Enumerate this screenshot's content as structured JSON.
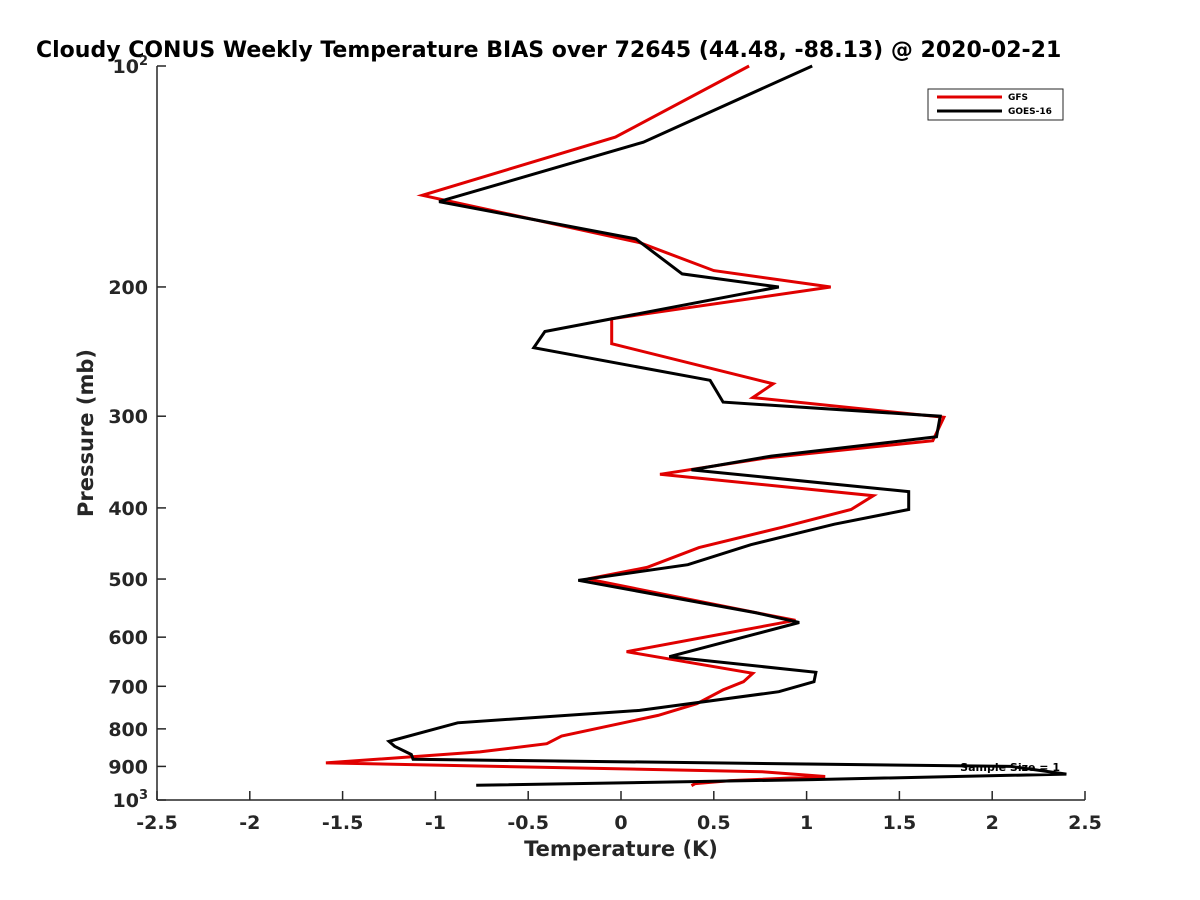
{
  "chart_data": {
    "type": "line",
    "title": "Cloudy CONUS Weekly Temperature BIAS over 72645 (44.48, -88.13) @ 2020-02-21",
    "xlabel": "Temperature (K)",
    "ylabel": "Pressure (mb)",
    "xlim": [
      -2.5,
      2.5
    ],
    "ylim": [
      100,
      1000
    ],
    "y_scale": "log",
    "y_reversed": true,
    "grid": false,
    "legend_position": "top-right",
    "x_ticks": [
      {
        "value": -2.5,
        "label": "-2.5"
      },
      {
        "value": -2,
        "label": "-2"
      },
      {
        "value": -1.5,
        "label": "-1.5"
      },
      {
        "value": -1,
        "label": "-1"
      },
      {
        "value": -0.5,
        "label": "-0.5"
      },
      {
        "value": 0,
        "label": "0"
      },
      {
        "value": 0.5,
        "label": "0.5"
      },
      {
        "value": 1,
        "label": "1"
      },
      {
        "value": 1.5,
        "label": "1.5"
      },
      {
        "value": 2,
        "label": "2"
      },
      {
        "value": 2.5,
        "label": "2.5"
      }
    ],
    "y_ticks": [
      {
        "value": 100,
        "base": "10",
        "exp": "2"
      },
      {
        "value": 200,
        "label": "200"
      },
      {
        "value": 300,
        "label": "300"
      },
      {
        "value": 400,
        "label": "400"
      },
      {
        "value": 500,
        "label": "500"
      },
      {
        "value": 600,
        "label": "600"
      },
      {
        "value": 700,
        "label": "700"
      },
      {
        "value": 800,
        "label": "800"
      },
      {
        "value": 900,
        "label": "900"
      },
      {
        "value": 1000,
        "base": "10",
        "exp": "3"
      }
    ],
    "annotation": "Sample Size = 1",
    "series": [
      {
        "name": "GFS",
        "color": "#e00000",
        "points": [
          [
            0.69,
            100
          ],
          [
            -0.03,
            125
          ],
          [
            -1.07,
            150
          ],
          [
            0.1,
            174
          ],
          [
            0.5,
            190
          ],
          [
            1.13,
            200
          ],
          [
            -0.05,
            221
          ],
          [
            -0.05,
            239
          ],
          [
            0.82,
            271
          ],
          [
            0.71,
            283
          ],
          [
            1.74,
            301
          ],
          [
            1.68,
            324
          ],
          [
            0.78,
            342
          ],
          [
            0.21,
            360
          ],
          [
            1.36,
            385
          ],
          [
            1.24,
            402
          ],
          [
            0.87,
            425
          ],
          [
            0.42,
            453
          ],
          [
            0.14,
            482
          ],
          [
            -0.18,
            500
          ],
          [
            0.78,
            559
          ],
          [
            0.94,
            569
          ],
          [
            0.03,
            628
          ],
          [
            0.71,
            672
          ],
          [
            0.66,
            690
          ],
          [
            0.55,
            708
          ],
          [
            0.41,
            739
          ],
          [
            0.2,
            767
          ],
          [
            -0.32,
            818
          ],
          [
            -0.4,
            838
          ],
          [
            -0.76,
            860
          ],
          [
            -1.59,
            890
          ],
          [
            0.76,
            915
          ],
          [
            1.1,
            929
          ],
          [
            0.59,
            941
          ],
          [
            0.4,
            950
          ],
          [
            0.38,
            956
          ]
        ]
      },
      {
        "name": "GOES-16",
        "color": "#000000",
        "points": [
          [
            1.03,
            100
          ],
          [
            0.12,
            127
          ],
          [
            -0.98,
            153
          ],
          [
            0.08,
            172
          ],
          [
            0.33,
            192
          ],
          [
            0.85,
            200
          ],
          [
            -0.41,
            230
          ],
          [
            -0.47,
            242
          ],
          [
            0.48,
            268
          ],
          [
            0.55,
            287
          ],
          [
            1.72,
            300
          ],
          [
            1.7,
            320
          ],
          [
            0.81,
            340
          ],
          [
            0.38,
            355
          ],
          [
            1.55,
            380
          ],
          [
            1.55,
            402
          ],
          [
            1.15,
            421
          ],
          [
            0.7,
            449
          ],
          [
            0.36,
            478
          ],
          [
            -0.23,
            502
          ],
          [
            0.73,
            556
          ],
          [
            0.96,
            573
          ],
          [
            0.26,
            638
          ],
          [
            1.05,
            670
          ],
          [
            1.04,
            690
          ],
          [
            0.85,
            712
          ],
          [
            0.1,
            755
          ],
          [
            -0.88,
            785
          ],
          [
            -1.25,
            832
          ],
          [
            -1.22,
            845
          ],
          [
            -1.13,
            867
          ],
          [
            -1.12,
            880
          ],
          [
            2.1,
            900
          ],
          [
            2.4,
            922
          ],
          [
            1.03,
            938
          ],
          [
            -0.78,
            955
          ]
        ]
      }
    ]
  }
}
